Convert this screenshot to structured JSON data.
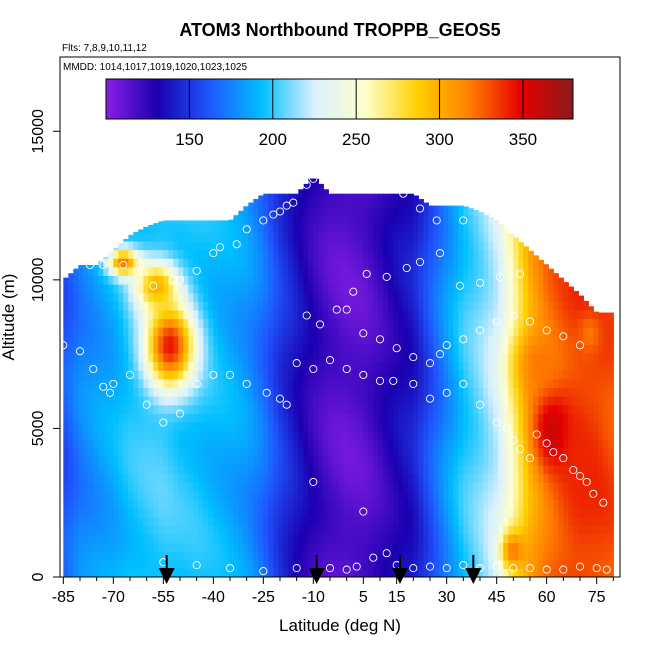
{
  "chart_data": {
    "type": "heatmap",
    "title": "ATOM3 Northbound TROPPB_GEOS5",
    "subtitle_flights": "Flts: 7,8,9,10,11,12",
    "subtitle_dates": "MMDD: 1014,1017,1019,1020,1023,1025",
    "xlabel": "Latitude (deg N)",
    "ylabel": "Altitude (m)",
    "xlim": [
      -86,
      82
    ],
    "ylim": [
      0,
      17500
    ],
    "x_ticks": [
      -85,
      -70,
      -55,
      -40,
      -25,
      -10,
      5,
      15,
      30,
      45,
      60,
      75
    ],
    "x_tick_labels": [
      "-85",
      "-70",
      "-55",
      "-40",
      "-25",
      "-10",
      "5",
      "15",
      "30",
      "45",
      "60",
      "75"
    ],
    "x_minor_ticks": [
      -80,
      -75,
      -65,
      -60,
      -50,
      -45,
      -35,
      -30,
      -20,
      -15,
      -5,
      0,
      10,
      20,
      25,
      35,
      40,
      50,
      55,
      65,
      70,
      80
    ],
    "y_ticks": [
      0,
      5000,
      10000,
      15000
    ],
    "y_tick_labels": [
      "0",
      "5000",
      "10000",
      "15000"
    ],
    "colorbar": {
      "min": 100,
      "max": 380,
      "ticks": [
        150,
        200,
        250,
        300,
        350
      ],
      "tick_labels": [
        "150",
        "200",
        "250",
        "300",
        "350"
      ],
      "colors": [
        "#8a1fe6",
        "#1a00b0",
        "#1f56ff",
        "#00bfff",
        "#d9f0ff",
        "#ffffcc",
        "#ffd000",
        "#ff8000",
        "#e60000",
        "#8b1a1a"
      ]
    },
    "x_profile": [
      [
        -85,
        160
      ],
      [
        -80,
        175
      ],
      [
        -75,
        182
      ],
      [
        -70,
        188
      ],
      [
        -65,
        196
      ],
      [
        -60,
        200
      ],
      [
        -55,
        202
      ],
      [
        -50,
        198
      ],
      [
        -45,
        196
      ],
      [
        -40,
        192
      ],
      [
        -35,
        188
      ],
      [
        -30,
        182
      ],
      [
        -25,
        170
      ],
      [
        -20,
        152
      ],
      [
        -15,
        138
      ],
      [
        -10,
        125
      ],
      [
        -5,
        116
      ],
      [
        0,
        112
      ],
      [
        5,
        114
      ],
      [
        10,
        122
      ],
      [
        15,
        132
      ],
      [
        20,
        140
      ],
      [
        25,
        160
      ],
      [
        30,
        180
      ],
      [
        35,
        198
      ],
      [
        40,
        210
      ],
      [
        45,
        225
      ],
      [
        50,
        262
      ],
      [
        55,
        300
      ],
      [
        60,
        320
      ],
      [
        65,
        330
      ],
      [
        70,
        335
      ],
      [
        75,
        335
      ],
      [
        80,
        330
      ]
    ],
    "tropopause_top": [
      [
        -85,
        10000
      ],
      [
        -80,
        10500
      ],
      [
        -75,
        10500
      ],
      [
        -70,
        11000
      ],
      [
        -65,
        11500
      ],
      [
        -60,
        11800
      ],
      [
        -55,
        12000
      ],
      [
        -50,
        12000
      ],
      [
        -45,
        12000
      ],
      [
        -40,
        12000
      ],
      [
        -35,
        12000
      ],
      [
        -30,
        12500
      ],
      [
        -25,
        12900
      ],
      [
        -20,
        12900
      ],
      [
        -15,
        12900
      ],
      [
        -10,
        13500
      ],
      [
        -5,
        12900
      ],
      [
        0,
        12900
      ],
      [
        5,
        12900
      ],
      [
        10,
        12900
      ],
      [
        15,
        12900
      ],
      [
        20,
        12900
      ],
      [
        25,
        12500
      ],
      [
        30,
        12500
      ],
      [
        35,
        12500
      ],
      [
        40,
        12300
      ],
      [
        45,
        12000
      ],
      [
        50,
        11500
      ],
      [
        55,
        11000
      ],
      [
        60,
        10500
      ],
      [
        65,
        10000
      ],
      [
        70,
        9500
      ],
      [
        75,
        8900
      ],
      [
        78,
        8900
      ]
    ],
    "hot_spots": [
      {
        "lat": -53,
        "alt": 7800,
        "dlat": 8,
        "dalt": 1600,
        "value": 345
      },
      {
        "lat": -57,
        "alt": 9800,
        "dlat": 7,
        "dalt": 900,
        "value": 300
      },
      {
        "lat": -67,
        "alt": 10600,
        "dlat": 5,
        "dalt": 500,
        "value": 320
      },
      {
        "lat": 62,
        "alt": 5000,
        "dlat": 6,
        "dalt": 1400,
        "value": 360
      },
      {
        "lat": 58,
        "alt": 7200,
        "dlat": 8,
        "dalt": 1200,
        "value": 320
      },
      {
        "lat": 70,
        "alt": 3500,
        "dlat": 6,
        "dalt": 2500,
        "value": 340
      },
      {
        "lat": 50,
        "alt": 900,
        "dlat": 4,
        "dalt": 700,
        "value": 320
      },
      {
        "lat": 73,
        "alt": 8200,
        "dlat": 4,
        "dalt": 800,
        "value": 320
      }
    ],
    "samples": [
      [
        -77,
        10500
      ],
      [
        -73,
        10500
      ],
      [
        -67,
        10500
      ],
      [
        -62,
        10500
      ],
      [
        -58,
        9800
      ],
      [
        -52,
        10000
      ],
      [
        -50,
        10000
      ],
      [
        -45,
        10300
      ],
      [
        -40,
        10900
      ],
      [
        -38,
        11100
      ],
      [
        -33,
        11200
      ],
      [
        -30,
        11700
      ],
      [
        -25,
        12000
      ],
      [
        -22,
        12200
      ],
      [
        -20,
        12300
      ],
      [
        -18,
        12500
      ],
      [
        -16,
        12600
      ],
      [
        -12,
        13200
      ],
      [
        -10,
        13400
      ],
      [
        17,
        12900
      ],
      [
        22,
        12400
      ],
      [
        27,
        12000
      ],
      [
        35,
        12000
      ],
      [
        45,
        12200
      ],
      [
        55,
        12000
      ],
      [
        -85,
        7800
      ],
      [
        -80,
        7600
      ],
      [
        -76,
        7000
      ],
      [
        -73,
        6400
      ],
      [
        -71,
        6200
      ],
      [
        -70,
        6500
      ],
      [
        -65,
        6800
      ],
      [
        -60,
        5800
      ],
      [
        -55,
        5200
      ],
      [
        -50,
        5500
      ],
      [
        -45,
        6500
      ],
      [
        -40,
        6800
      ],
      [
        -35,
        6800
      ],
      [
        -30,
        6500
      ],
      [
        -24,
        6200
      ],
      [
        -20,
        6000
      ],
      [
        -18,
        5800
      ],
      [
        -15,
        7200
      ],
      [
        -10,
        7000
      ],
      [
        -5,
        7300
      ],
      [
        0,
        7000
      ],
      [
        5,
        6800
      ],
      [
        10,
        6600
      ],
      [
        14,
        6600
      ],
      [
        20,
        6500
      ],
      [
        25,
        6000
      ],
      [
        30,
        6200
      ],
      [
        35,
        6500
      ],
      [
        40,
        5800
      ],
      [
        45,
        5200
      ],
      [
        48,
        5000
      ],
      [
        50,
        4600
      ],
      [
        52,
        4300
      ],
      [
        55,
        4000
      ],
      [
        57,
        4800
      ],
      [
        60,
        4500
      ],
      [
        62,
        4200
      ],
      [
        65,
        4000
      ],
      [
        68,
        3600
      ],
      [
        70,
        3400
      ],
      [
        72,
        3200
      ],
      [
        74,
        2800
      ],
      [
        77,
        2500
      ],
      [
        -12,
        8800
      ],
      [
        -8,
        8500
      ],
      [
        0,
        9000
      ],
      [
        5,
        8200
      ],
      [
        10,
        8000
      ],
      [
        15,
        7700
      ],
      [
        20,
        7400
      ],
      [
        25,
        7200
      ],
      [
        28,
        7500
      ],
      [
        30,
        7800
      ],
      [
        35,
        8000
      ],
      [
        40,
        8300
      ],
      [
        45,
        8600
      ],
      [
        50,
        8800
      ],
      [
        55,
        8600
      ],
      [
        60,
        8300
      ],
      [
        65,
        8100
      ],
      [
        70,
        7800
      ],
      [
        -55,
        500
      ],
      [
        -45,
        400
      ],
      [
        -35,
        300
      ],
      [
        -25,
        200
      ],
      [
        -15,
        300
      ],
      [
        -10,
        3200
      ],
      [
        -5,
        300
      ],
      [
        0,
        250
      ],
      [
        3,
        350
      ],
      [
        5,
        2200
      ],
      [
        8,
        650
      ],
      [
        12,
        800
      ],
      [
        15,
        400
      ],
      [
        20,
        300
      ],
      [
        25,
        350
      ],
      [
        30,
        300
      ],
      [
        35,
        400
      ],
      [
        40,
        300
      ],
      [
        45,
        350
      ],
      [
        50,
        300
      ],
      [
        55,
        300
      ],
      [
        60,
        250
      ],
      [
        65,
        250
      ],
      [
        70,
        350
      ],
      [
        75,
        300
      ],
      [
        78,
        250
      ],
      [
        -3,
        9000
      ],
      [
        2,
        9600
      ],
      [
        6,
        10200
      ],
      [
        12,
        10100
      ],
      [
        18,
        10400
      ],
      [
        22,
        10600
      ],
      [
        28,
        10900
      ],
      [
        34,
        9800
      ],
      [
        40,
        9900
      ],
      [
        46,
        10100
      ],
      [
        52,
        10200
      ]
    ],
    "arrows_lat": [
      -54,
      -9,
      16,
      38
    ]
  }
}
